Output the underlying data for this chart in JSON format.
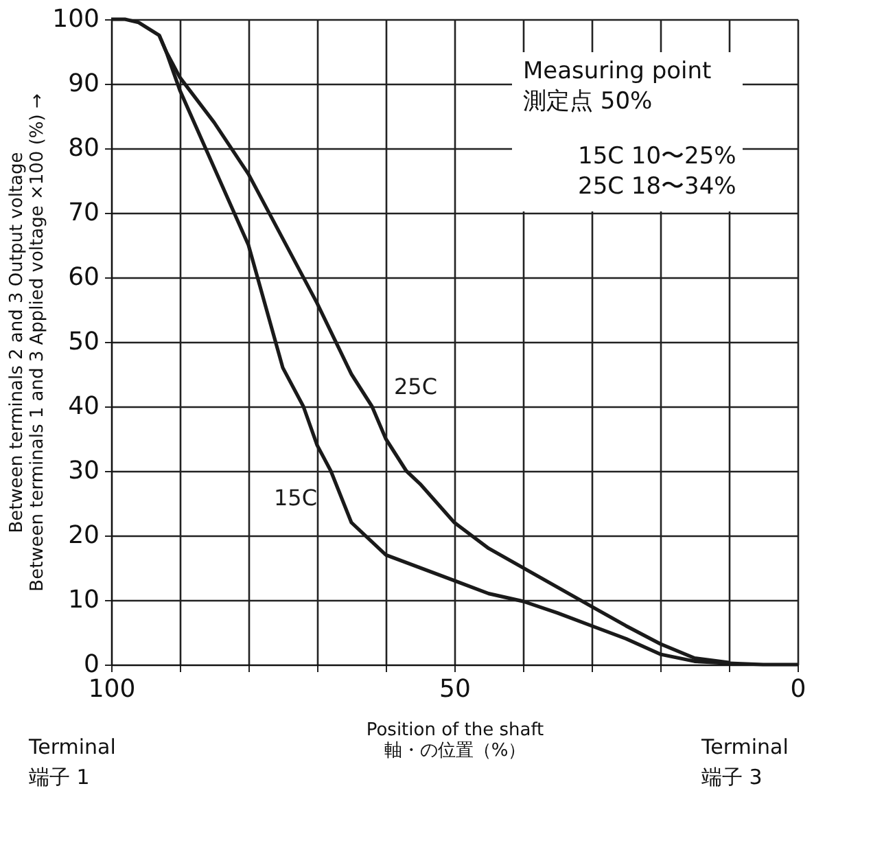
{
  "chart_data": {
    "type": "line",
    "xlabel": "Position of the shaft\n軸・の位置（%）",
    "ylabel": "Between terminals 2 and 3 Output voltage\nBetween terminals 1 and 3 Applied voltage ×100 (%) →",
    "xlim": [
      100,
      0
    ],
    "ylim": [
      0,
      100
    ],
    "xticks": [
      100,
      {
        "value": 90,
        "label": null
      },
      {
        "value": 80,
        "label": null
      },
      {
        "value": 70,
        "label": null
      },
      {
        "value": 60,
        "label": null
      },
      50,
      {
        "value": 40,
        "label": null
      },
      {
        "value": 30,
        "label": null
      },
      {
        "value": 20,
        "label": null
      },
      {
        "value": 10,
        "label": null
      },
      0
    ],
    "yticks": [
      0,
      10,
      20,
      30,
      40,
      50,
      60,
      70,
      80,
      90,
      100
    ],
    "grid": true,
    "legend": false,
    "marker": "none",
    "line_style": "solid",
    "series": [
      {
        "name": "15C",
        "color": "#1a1a1a",
        "x": [
          100,
          98,
          96,
          93,
          92,
          90,
          85,
          80,
          75,
          72,
          70,
          68,
          65,
          60,
          55,
          50,
          45,
          40,
          35,
          30,
          25,
          20,
          15,
          10,
          5,
          0
        ],
        "values": [
          100,
          100,
          99.5,
          97.5,
          95,
          89,
          77,
          65,
          46,
          40,
          34,
          30,
          22,
          17,
          15,
          13,
          11,
          9.8,
          8,
          6,
          4,
          1.6,
          0.5,
          0.2,
          0,
          0
        ]
      },
      {
        "name": "25C",
        "color": "#1a1a1a",
        "x": [
          93,
          92,
          90,
          85,
          80,
          75,
          70,
          65,
          62,
          60,
          57,
          55,
          50,
          45,
          40,
          35,
          30,
          25,
          20,
          15,
          10
        ],
        "values": [
          97.5,
          95,
          91,
          84,
          76,
          66,
          56,
          45,
          40,
          35,
          30,
          28,
          22,
          18,
          15,
          12,
          9,
          6,
          3.2,
          1,
          0.3
        ]
      }
    ],
    "annotations": [
      "Terminal\n端子 1",
      "Terminal\n端子 3",
      "Measuring point\n測定点     50%",
      "15C   10〜25%\n25C   18〜34%"
    ]
  }
}
